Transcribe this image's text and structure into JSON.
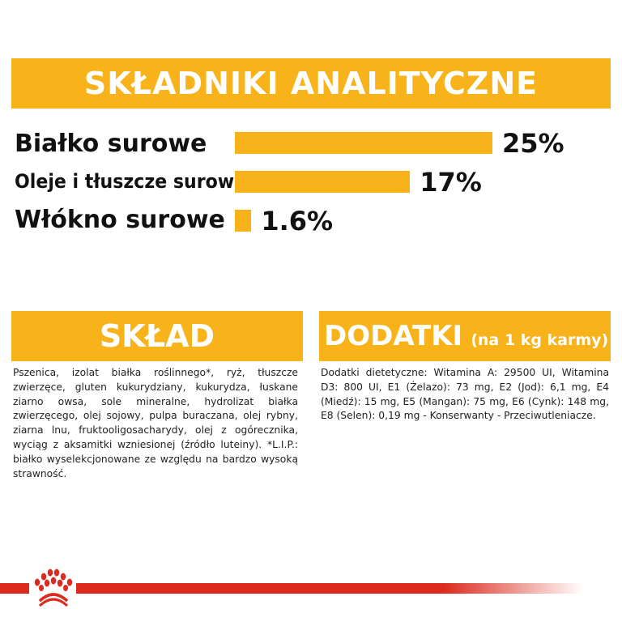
{
  "header": {
    "title": "SKŁADNIKI ANALITYCZNE"
  },
  "analytics": [
    {
      "label": "Białko surowe",
      "value": "25%",
      "percent": 25
    },
    {
      "label": "Oleje i tłuszcze surowe",
      "value": "17%",
      "percent": 17
    },
    {
      "label": "Włókno surowe",
      "value": "1.6%",
      "percent": 1.6
    }
  ],
  "sklad": {
    "title": "SKŁAD",
    "text": "Pszenica, izolat białka roślinnego*, ryż, tłuszcze zwierzęce, gluten kukurydziany, kukurydza, łuskane ziarno owsa, sole mineralne, hydrolizat białka zwierzęcego, olej sojowy, pulpa buraczana, olej rybny, ziarna lnu, fruktooligosacharydy, olej z ogórecznika, wyciąg z aksamitki wzniesionej (źródło luteiny). *L.I.P.: białko wyselekcjonowane ze względu na bardzo wysoką strawność."
  },
  "dodatki": {
    "title": "DODATKI",
    "subtitle": "(na 1 kg karmy)",
    "text": "Dodatki dietetyczne: Witamina A: 29500 UI, Witamina D3: 800 UI, E1 (Żelazo): 73 mg, E2 (Jod): 6,1 mg, E4 (Miedź): 15 mg, E5 (Mangan): 75 mg, E6 (Cynk): 148 mg, E8 (Selen): 0,19 mg - Konserwanty - Przeciwutleniacze."
  },
  "colors": {
    "accent": "#F8B21A",
    "brand_red": "#DC2A1E"
  },
  "logo": {
    "icon": "royal-canin-crown-icon"
  }
}
